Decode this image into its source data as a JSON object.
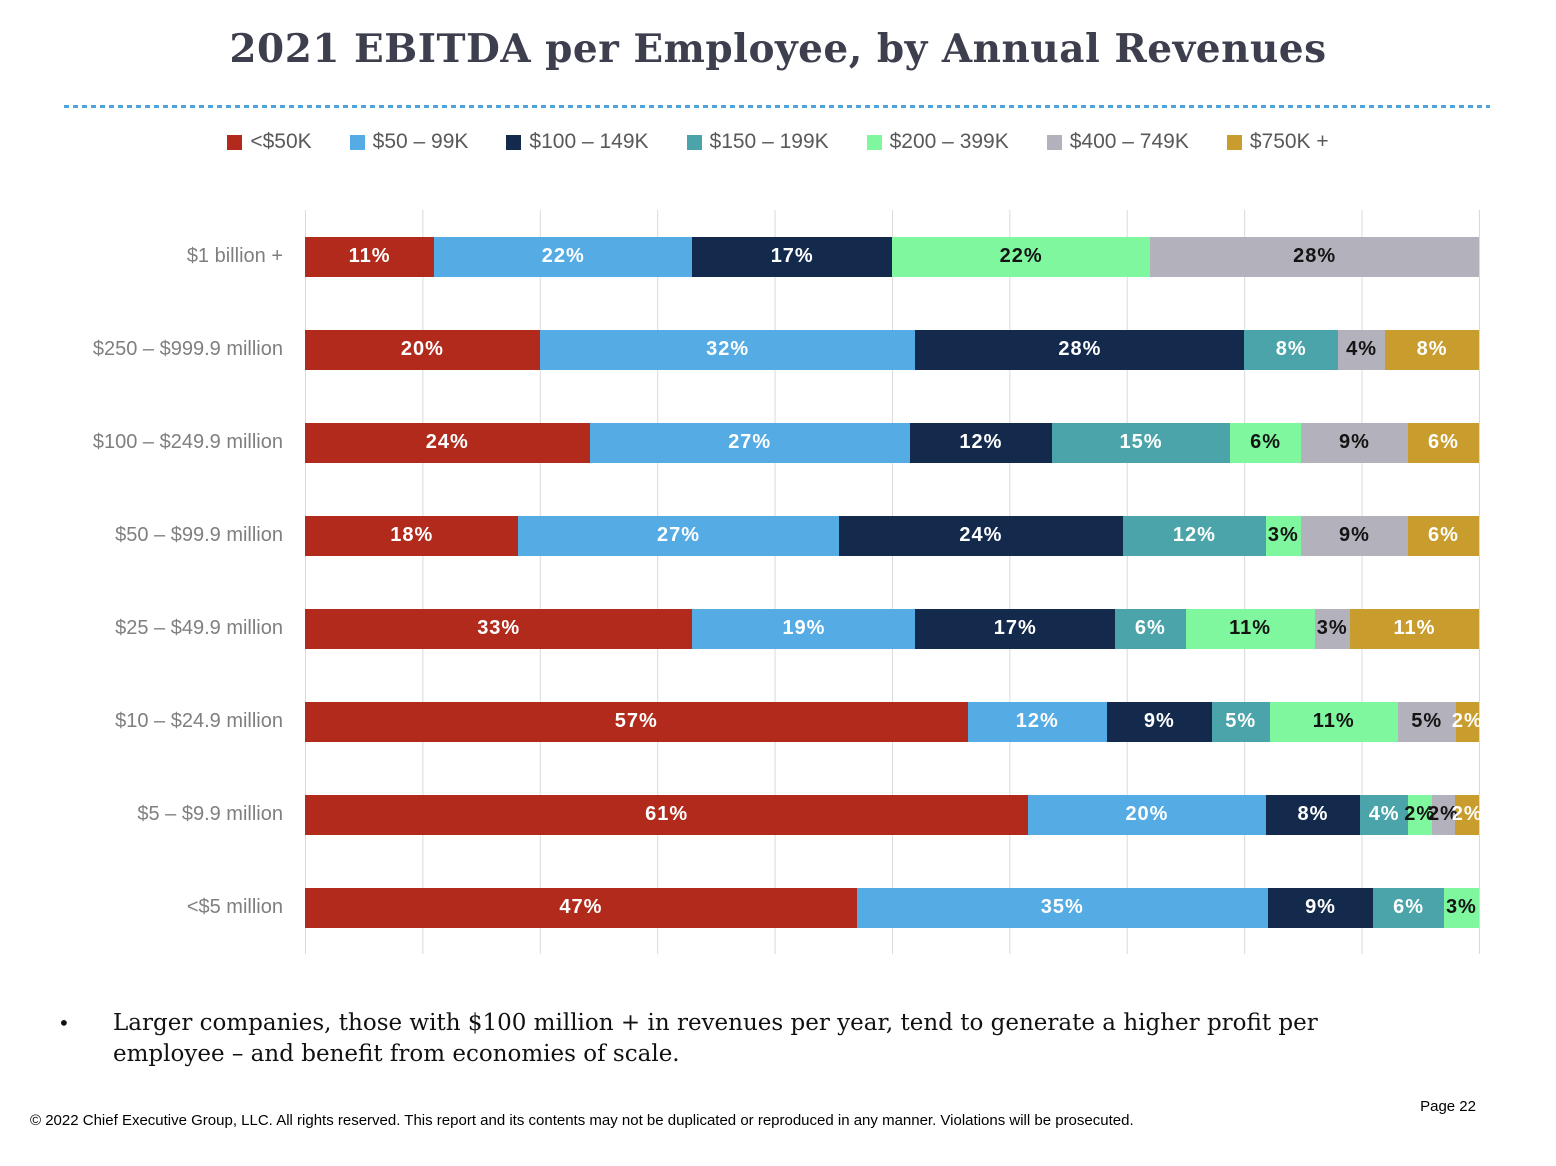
{
  "page": {
    "title": "2021 EBITDA per Employee, by Annual Revenues",
    "bullet_marker": "•",
    "bullet": "Larger companies, those with $100 million + in revenues per year, tend to generate a higher profit per employee – and benefit from economies of scale.",
    "footer": "© 2022 Chief Executive Group, LLC. All rights reserved. This report and its contents may not be duplicated or reproduced in any manner. Violations will be prosecuted.",
    "page_number": "Page 22"
  },
  "colors": {
    "title": "#3e3f4e",
    "divider": "#4fa3da",
    "gridline": "#dadada",
    "category_label": "#7f7f7f",
    "legend_label": "#595959"
  },
  "chart_data": {
    "type": "bar",
    "subtype": "horizontal-stacked",
    "legend_position": "top",
    "x_axis": {
      "min": 0,
      "max": 100,
      "gridline_step_percent": 10,
      "tick_labels_visible": false
    },
    "value_suffix": "%",
    "series": [
      {
        "name": "<$50K",
        "color": "#b22a1c",
        "label_color": "#ffffff"
      },
      {
        "name": "$50 – 99K",
        "color": "#55abe4",
        "label_color": "#ffffff"
      },
      {
        "name": "$100 – 149K",
        "color": "#132a4d",
        "label_color": "#ffffff"
      },
      {
        "name": "$150 – 199K",
        "color": "#4aa4a9",
        "label_color": "#ffffff"
      },
      {
        "name": "$200 – 399K",
        "color": "#7ff79e",
        "label_color": "#141414"
      },
      {
        "name": "$400 – 749K",
        "color": "#b3b2bc",
        "label_color": "#141414"
      },
      {
        "name": "$750K +",
        "color": "#c89c2d",
        "label_color": "#ffffff"
      }
    ],
    "categories": [
      "$1 billion +",
      "$250 – $999.9 million",
      "$100 – $249.9 million",
      "$50 – $99.9 million",
      "$25 – $49.9 million",
      "$10 – $24.9 million",
      "$5 – $9.9 million",
      "<$5 million"
    ],
    "values": [
      [
        11,
        22,
        17,
        0,
        22,
        28,
        0
      ],
      [
        20,
        32,
        28,
        8,
        0,
        4,
        8
      ],
      [
        24,
        27,
        12,
        15,
        6,
        9,
        6
      ],
      [
        18,
        27,
        24,
        12,
        3,
        9,
        6
      ],
      [
        33,
        19,
        17,
        6,
        11,
        3,
        11
      ],
      [
        57,
        12,
        9,
        5,
        11,
        5,
        2
      ],
      [
        61,
        20,
        8,
        4,
        2,
        2,
        2
      ],
      [
        47,
        35,
        9,
        6,
        3,
        0,
        0
      ]
    ]
  }
}
